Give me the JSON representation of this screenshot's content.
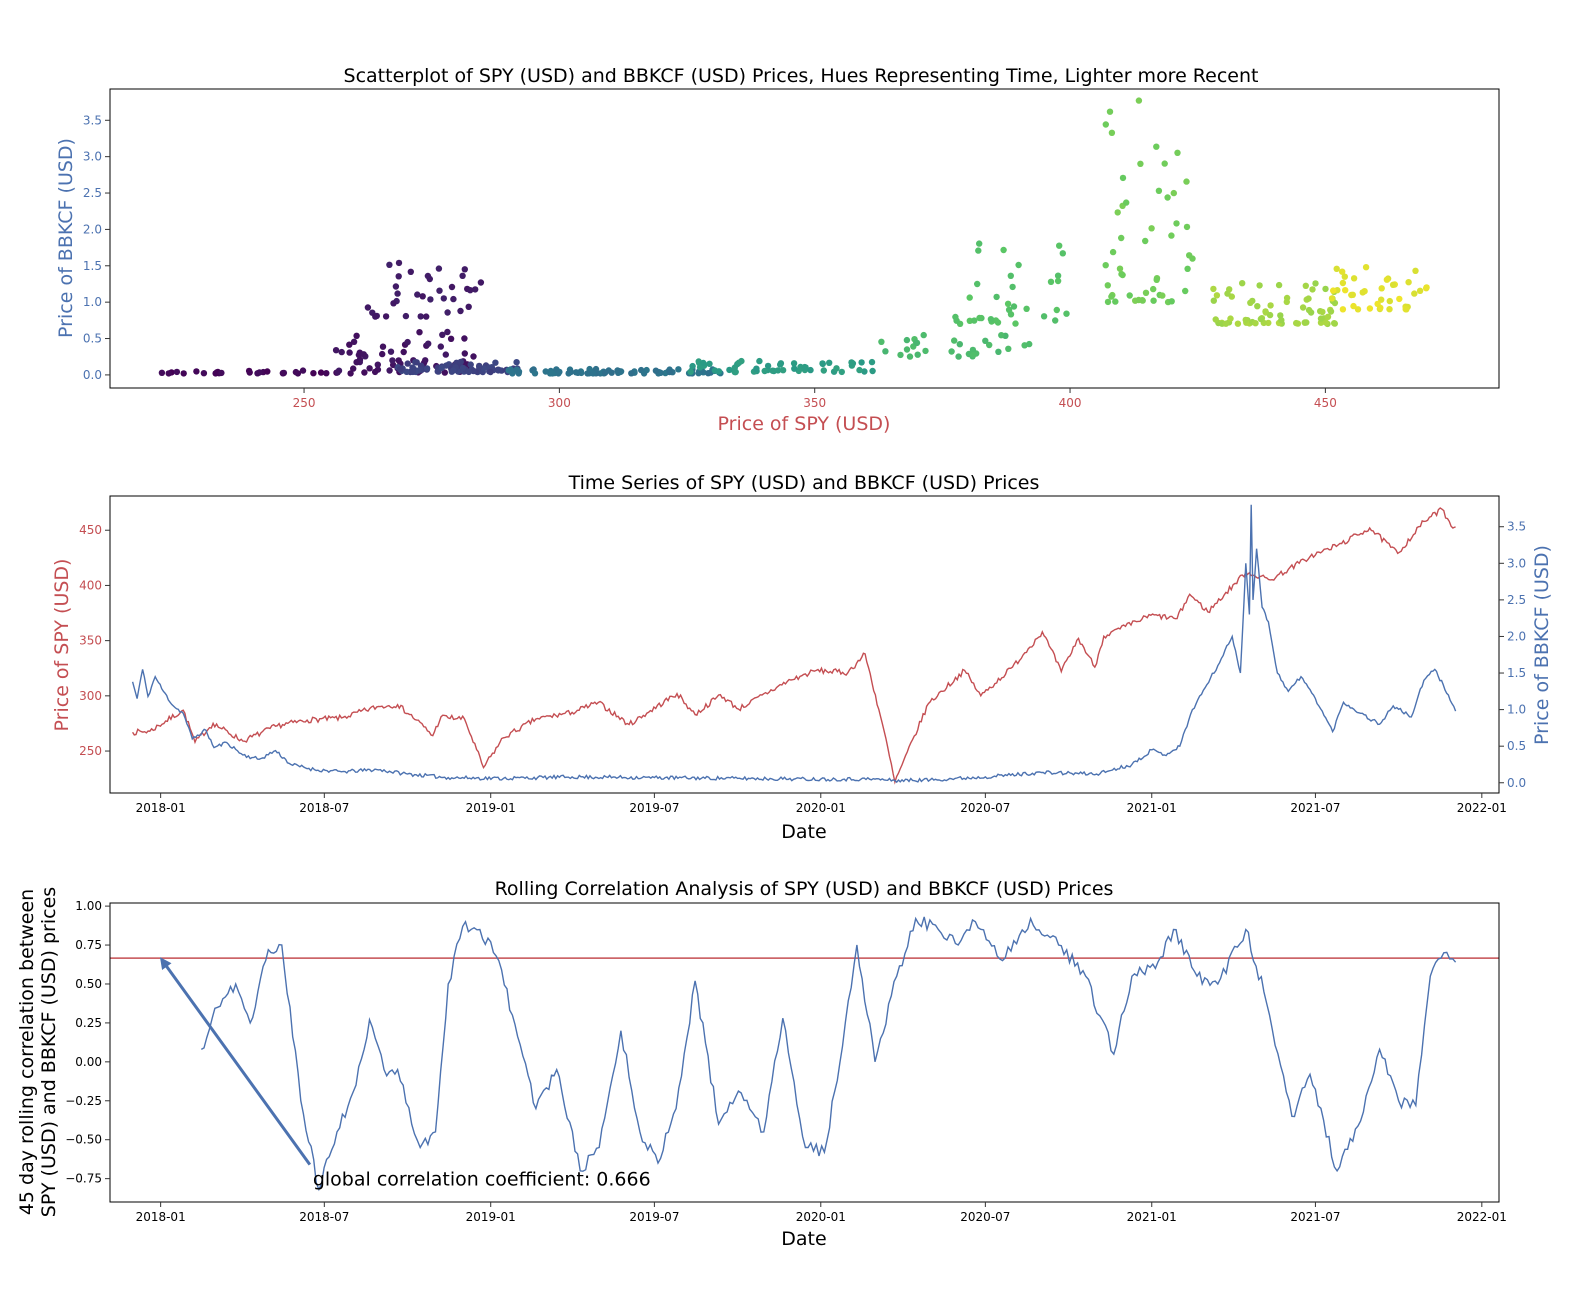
{
  "colors": {
    "red": "#c44e52",
    "blue": "#4c72b0",
    "black": "#000000",
    "viridis": [
      "#440154",
      "#3b528b",
      "#21918c",
      "#5ec962",
      "#fde725"
    ]
  },
  "chart_data": [
    {
      "type": "scatter",
      "title": "Scatterplot of SPY (USD) and BBKCF (USD) Prices, Hues Representing Time, Lighter more Recent",
      "xlabel": "Price of SPY (USD)",
      "ylabel": "Price of BBKCF (USD)",
      "xlim": [
        212,
        484
      ],
      "ylim": [
        -0.18,
        3.93
      ],
      "xticks": [
        250,
        300,
        350,
        400,
        450
      ],
      "yticks": [
        0.0,
        0.5,
        1.0,
        1.5,
        2.0,
        2.5,
        3.0,
        3.5
      ],
      "ytick_labels": [
        "0.0",
        "0.5",
        "1.0",
        "1.5",
        "2.0",
        "2.5",
        "3.0",
        "3.5"
      ],
      "xtick_color": "#c44e52",
      "ytick_color": "#4c72b0",
      "grid": false,
      "hue": "time (viridis, lighter = more recent)",
      "clusters": [
        {
          "t": 0.02,
          "x_range": [
            222,
            262
          ],
          "y_range": [
            0.02,
            0.06
          ],
          "n": 30
        },
        {
          "t": 0.06,
          "x_range": [
            256,
            285
          ],
          "y_range": [
            0.03,
            0.6
          ],
          "n": 60
        },
        {
          "t": 0.08,
          "x_range": [
            262,
            285
          ],
          "y_range": [
            0.8,
            1.6
          ],
          "n": 35
        },
        {
          "t": 0.2,
          "x_range": [
            268,
            292
          ],
          "y_range": [
            0.04,
            0.18
          ],
          "n": 70
        },
        {
          "t": 0.38,
          "x_range": [
            290,
            332
          ],
          "y_range": [
            0.02,
            0.08
          ],
          "n": 80
        },
        {
          "t": 0.55,
          "x_range": [
            325,
            362
          ],
          "y_range": [
            0.04,
            0.2
          ],
          "n": 55
        },
        {
          "t": 0.68,
          "x_range": [
            363,
            392
          ],
          "y_range": [
            0.25,
            0.55
          ],
          "n": 30
        },
        {
          "t": 0.72,
          "x_range": [
            377,
            400
          ],
          "y_range": [
            0.7,
            1.9
          ],
          "n": 35
        },
        {
          "t": 0.78,
          "x_range": [
            406,
            424
          ],
          "y_range": [
            1.0,
            3.8
          ],
          "n": 50
        },
        {
          "t": 0.86,
          "x_range": [
            428,
            452
          ],
          "y_range": [
            0.7,
            1.3
          ],
          "n": 70
        },
        {
          "t": 0.96,
          "x_range": [
            450,
            470
          ],
          "y_range": [
            0.9,
            1.55
          ],
          "n": 40
        }
      ]
    },
    {
      "type": "line",
      "title": "Time Series of SPY (USD) and BBKCF (USD) Prices",
      "xlabel": "Date",
      "ylabel_left": "Price of SPY (USD)",
      "ylabel_right": "Price of BBKCF (USD)",
      "xlim": [
        "2017-11-06",
        "2022-01-20"
      ],
      "ylim_left": [
        212,
        481
      ],
      "ylim_right": [
        -0.14,
        3.92
      ],
      "xticks": [
        "2018-01",
        "2018-07",
        "2019-01",
        "2019-07",
        "2020-01",
        "2020-07",
        "2021-01",
        "2021-07",
        "2022-01"
      ],
      "yticks_left": [
        250,
        300,
        350,
        400,
        450
      ],
      "yticks_right": [
        0.0,
        0.5,
        1.0,
        1.5,
        2.0,
        2.5,
        3.0,
        3.5
      ],
      "ytick_labels_right": [
        "0.0",
        "0.5",
        "1.0",
        "1.5",
        "2.0",
        "2.5",
        "3.0",
        "3.5"
      ],
      "grid": false,
      "series": [
        {
          "name": "SPY (USD)",
          "axis": "left",
          "color": "#c44e52",
          "points": [
            [
              "2017-12-01",
              267
            ],
            [
              "2017-12-20",
              268
            ],
            [
              "2018-01-26",
              287
            ],
            [
              "2018-02-08",
              258
            ],
            [
              "2018-02-28",
              275
            ],
            [
              "2018-04-02",
              259
            ],
            [
              "2018-05-10",
              273
            ],
            [
              "2018-06-12",
              278
            ],
            [
              "2018-07-20",
              280
            ],
            [
              "2018-08-28",
              290
            ],
            [
              "2018-09-20",
              292
            ],
            [
              "2018-10-11",
              278
            ],
            [
              "2018-10-29",
              264
            ],
            [
              "2018-11-07",
              281
            ],
            [
              "2018-12-03",
              279
            ],
            [
              "2018-12-24",
              235
            ],
            [
              "2019-01-15",
              262
            ],
            [
              "2019-02-20",
              279
            ],
            [
              "2019-04-01",
              285
            ],
            [
              "2019-04-30",
              294
            ],
            [
              "2019-06-03",
              274
            ],
            [
              "2019-07-26",
              302
            ],
            [
              "2019-08-15",
              283
            ],
            [
              "2019-09-12",
              301
            ],
            [
              "2019-10-02",
              288
            ],
            [
              "2019-11-25",
              313
            ],
            [
              "2019-12-27",
              323
            ],
            [
              "2020-01-31",
              321
            ],
            [
              "2020-02-19",
              338
            ],
            [
              "2020-03-09",
              275
            ],
            [
              "2020-03-23",
              222
            ],
            [
              "2020-04-29",
              293
            ],
            [
              "2020-06-08",
              323
            ],
            [
              "2020-06-26",
              300
            ],
            [
              "2020-07-31",
              326
            ],
            [
              "2020-09-02",
              358
            ],
            [
              "2020-09-23",
              322
            ],
            [
              "2020-10-12",
              352
            ],
            [
              "2020-10-30",
              326
            ],
            [
              "2020-11-09",
              354
            ],
            [
              "2020-12-31",
              373
            ],
            [
              "2021-01-29",
              370
            ],
            [
              "2021-02-12",
              392
            ],
            [
              "2021-03-04",
              376
            ],
            [
              "2021-04-15",
              412
            ],
            [
              "2021-05-12",
              405
            ],
            [
              "2021-06-25",
              426
            ],
            [
              "2021-07-30",
              438
            ],
            [
              "2021-08-30",
              452
            ],
            [
              "2021-09-30",
              429
            ],
            [
              "2021-10-29",
              458
            ],
            [
              "2021-11-18",
              469
            ],
            [
              "2021-11-26",
              458
            ],
            [
              "2021-11-30",
              452
            ],
            [
              "2021-12-03",
              453
            ]
          ]
        },
        {
          "name": "BBKCF (USD)",
          "axis": "right",
          "color": "#4c72b0",
          "points": [
            [
              "2017-12-01",
              1.38
            ],
            [
              "2017-12-06",
              1.15
            ],
            [
              "2017-12-12",
              1.55
            ],
            [
              "2017-12-18",
              1.18
            ],
            [
              "2017-12-26",
              1.45
            ],
            [
              "2018-01-04",
              1.25
            ],
            [
              "2018-01-15",
              1.05
            ],
            [
              "2018-01-26",
              0.95
            ],
            [
              "2018-02-05",
              0.6
            ],
            [
              "2018-02-20",
              0.72
            ],
            [
              "2018-03-01",
              0.48
            ],
            [
              "2018-03-15",
              0.55
            ],
            [
              "2018-04-02",
              0.38
            ],
            [
              "2018-04-20",
              0.32
            ],
            [
              "2018-05-08",
              0.44
            ],
            [
              "2018-05-25",
              0.25
            ],
            [
              "2018-06-20",
              0.18
            ],
            [
              "2018-07-20",
              0.15
            ],
            [
              "2018-08-28",
              0.18
            ],
            [
              "2018-10-01",
              0.12
            ],
            [
              "2018-11-15",
              0.07
            ],
            [
              "2019-01-15",
              0.06
            ],
            [
              "2019-04-01",
              0.08
            ],
            [
              "2019-07-01",
              0.07
            ],
            [
              "2019-10-01",
              0.06
            ],
            [
              "2020-01-01",
              0.05
            ],
            [
              "2020-03-01",
              0.05
            ],
            [
              "2020-03-23",
              0.03
            ],
            [
              "2020-05-01",
              0.04
            ],
            [
              "2020-07-01",
              0.08
            ],
            [
              "2020-09-01",
              0.14
            ],
            [
              "2020-11-01",
              0.12
            ],
            [
              "2020-12-10",
              0.25
            ],
            [
              "2021-01-01",
              0.45
            ],
            [
              "2021-01-15",
              0.38
            ],
            [
              "2021-02-01",
              0.5
            ],
            [
              "2021-02-15",
              1.0
            ],
            [
              "2021-03-01",
              1.3
            ],
            [
              "2021-03-15",
              1.6
            ],
            [
              "2021-03-31",
              2.0
            ],
            [
              "2021-04-09",
              1.5
            ],
            [
              "2021-04-15",
              3.0
            ],
            [
              "2021-04-19",
              2.3
            ],
            [
              "2021-04-21",
              3.8
            ],
            [
              "2021-04-23",
              2.5
            ],
            [
              "2021-04-27",
              3.2
            ],
            [
              "2021-05-03",
              2.4
            ],
            [
              "2021-05-10",
              2.2
            ],
            [
              "2021-05-20",
              1.5
            ],
            [
              "2021-06-01",
              1.25
            ],
            [
              "2021-06-15",
              1.45
            ],
            [
              "2021-07-01",
              1.15
            ],
            [
              "2021-07-20",
              0.7
            ],
            [
              "2021-08-01",
              1.1
            ],
            [
              "2021-08-20",
              0.95
            ],
            [
              "2021-09-10",
              0.8
            ],
            [
              "2021-09-25",
              1.05
            ],
            [
              "2021-10-15",
              0.9
            ],
            [
              "2021-10-29",
              1.4
            ],
            [
              "2021-11-10",
              1.55
            ],
            [
              "2021-11-25",
              1.2
            ],
            [
              "2021-12-03",
              0.98
            ]
          ]
        }
      ]
    },
    {
      "type": "line",
      "title": "Rolling Correlation Analysis of SPY (USD) and BBKCF (USD) Prices",
      "xlabel": "Date",
      "ylabel": "45 day rolling correlation between SPY (USD) and BBKCF (USD) prices",
      "ylabel_lines": [
        "45 day rolling correlation between",
        "SPY (USD) and BBKCF (USD) prices"
      ],
      "xlim": [
        "2017-11-06",
        "2022-01-20"
      ],
      "ylim": [
        -0.9,
        1.02
      ],
      "xticks": [
        "2018-01",
        "2018-07",
        "2019-01",
        "2019-07",
        "2020-01",
        "2020-07",
        "2021-01",
        "2021-07",
        "2022-01"
      ],
      "yticks": [
        -0.75,
        -0.5,
        -0.25,
        0.0,
        0.25,
        0.5,
        0.75,
        1.0
      ],
      "ytick_labels": [
        "−0.75",
        "−0.50",
        "−0.25",
        "0.00",
        "0.25",
        "0.50",
        "0.75",
        "1.00"
      ],
      "grid": false,
      "hline": {
        "y": 0.666,
        "color": "#c44e52"
      },
      "annotation": {
        "text": "global correlation coefficient: 0.666",
        "xy": [
          "2018-01-01",
          0.666
        ],
        "xytext": [
          "2018-06-15",
          -0.66
        ]
      },
      "series": [
        {
          "name": "45 day rolling correlation",
          "color": "#4c72b0",
          "points": [
            [
              "2018-02-15",
              0.08
            ],
            [
              "2018-03-05",
              0.35
            ],
            [
              "2018-03-25",
              0.5
            ],
            [
              "2018-04-10",
              0.25
            ],
            [
              "2018-04-30",
              0.72
            ],
            [
              "2018-05-15",
              0.75
            ],
            [
              "2018-06-05",
              -0.25
            ],
            [
              "2018-06-25",
              -0.82
            ],
            [
              "2018-07-15",
              -0.45
            ],
            [
              "2018-08-05",
              -0.15
            ],
            [
              "2018-08-20",
              0.27
            ],
            [
              "2018-09-05",
              -0.05
            ],
            [
              "2018-09-20",
              -0.05
            ],
            [
              "2018-10-15",
              -0.55
            ],
            [
              "2018-11-01",
              -0.45
            ],
            [
              "2018-11-15",
              0.5
            ],
            [
              "2018-12-01",
              0.87
            ],
            [
              "2018-12-20",
              0.85
            ],
            [
              "2019-01-10",
              0.65
            ],
            [
              "2019-01-25",
              0.3
            ],
            [
              "2019-02-20",
              -0.3
            ],
            [
              "2019-03-15",
              -0.05
            ],
            [
              "2019-04-10",
              -0.7
            ],
            [
              "2019-05-01",
              -0.55
            ],
            [
              "2019-05-25",
              0.2
            ],
            [
              "2019-06-15",
              -0.45
            ],
            [
              "2019-07-05",
              -0.65
            ],
            [
              "2019-07-25",
              -0.3
            ],
            [
              "2019-08-15",
              0.52
            ],
            [
              "2019-09-10",
              -0.4
            ],
            [
              "2019-10-05",
              -0.2
            ],
            [
              "2019-10-30",
              -0.45
            ],
            [
              "2019-11-20",
              0.28
            ],
            [
              "2019-12-15",
              -0.55
            ],
            [
              "2020-01-05",
              -0.58
            ],
            [
              "2020-01-25",
              0.1
            ],
            [
              "2020-02-10",
              0.75
            ],
            [
              "2020-03-01",
              0.0
            ],
            [
              "2020-03-25",
              0.55
            ],
            [
              "2020-04-15",
              0.92
            ],
            [
              "2020-05-10",
              0.85
            ],
            [
              "2020-06-01",
              0.75
            ],
            [
              "2020-06-20",
              0.9
            ],
            [
              "2020-07-20",
              0.65
            ],
            [
              "2020-08-20",
              0.92
            ],
            [
              "2020-09-20",
              0.75
            ],
            [
              "2020-10-20",
              0.55
            ],
            [
              "2020-11-20",
              0.05
            ],
            [
              "2020-12-10",
              0.55
            ],
            [
              "2021-01-05",
              0.6
            ],
            [
              "2021-01-25",
              0.85
            ],
            [
              "2021-02-20",
              0.55
            ],
            [
              "2021-03-15",
              0.5
            ],
            [
              "2021-04-15",
              0.85
            ],
            [
              "2021-05-05",
              0.45
            ],
            [
              "2021-06-05",
              -0.35
            ],
            [
              "2021-06-25",
              -0.08
            ],
            [
              "2021-07-25",
              -0.7
            ],
            [
              "2021-08-20",
              -0.38
            ],
            [
              "2021-09-10",
              0.08
            ],
            [
              "2021-10-01",
              -0.25
            ],
            [
              "2021-10-20",
              -0.28
            ],
            [
              "2021-11-05",
              0.55
            ],
            [
              "2021-11-20",
              0.7
            ],
            [
              "2021-12-03",
              0.64
            ]
          ]
        }
      ]
    }
  ]
}
